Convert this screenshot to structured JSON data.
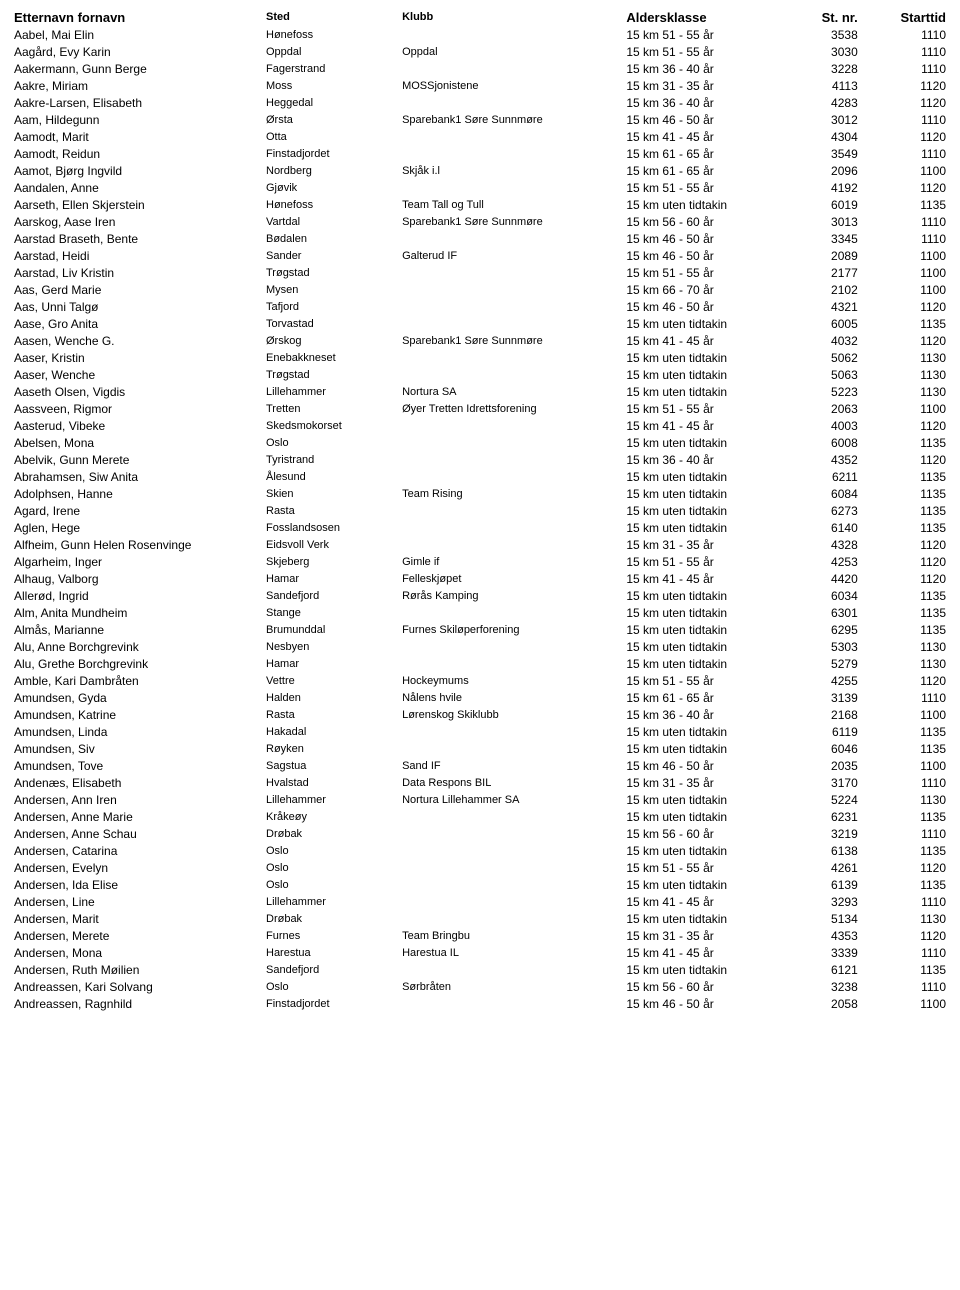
{
  "table": {
    "headers": {
      "name": "Etternavn fornavn",
      "sted": "Sted",
      "klubb": "Klubb",
      "alder": "Aldersklasse",
      "stnr": "St. nr.",
      "start": "Starttid"
    },
    "rows": [
      {
        "name": "Aabel, Mai Elin",
        "sted": "Hønefoss",
        "klubb": "",
        "alder": "15 km 51 - 55 år",
        "stnr": "3538",
        "start": "1110"
      },
      {
        "name": "Aagård, Evy Karin",
        "sted": "Oppdal",
        "klubb": "Oppdal",
        "alder": "15 km 51 - 55 år",
        "stnr": "3030",
        "start": "1110"
      },
      {
        "name": "Aakermann, Gunn Berge",
        "sted": "Fagerstrand",
        "klubb": "",
        "alder": "15 km 36 - 40 år",
        "stnr": "3228",
        "start": "1110"
      },
      {
        "name": "Aakre, Miriam",
        "sted": "Moss",
        "klubb": "MOSSjonistene",
        "alder": "15 km 31 - 35 år",
        "stnr": "4113",
        "start": "1120"
      },
      {
        "name": "Aakre-Larsen, Elisabeth",
        "sted": "Heggedal",
        "klubb": "",
        "alder": "15 km 36 - 40 år",
        "stnr": "4283",
        "start": "1120"
      },
      {
        "name": "Aam, Hildegunn",
        "sted": "Ørsta",
        "klubb": "Sparebank1 Søre Sunnmøre",
        "alder": "15 km 46 - 50 år",
        "stnr": "3012",
        "start": "1110"
      },
      {
        "name": "Aamodt, Marit",
        "sted": "Otta",
        "klubb": "",
        "alder": "15 km 41 - 45 år",
        "stnr": "4304",
        "start": "1120"
      },
      {
        "name": "Aamodt, Reidun",
        "sted": "Finstadjordet",
        "klubb": "",
        "alder": "15 km 61 - 65 år",
        "stnr": "3549",
        "start": "1110"
      },
      {
        "name": "Aamot, Bjørg Ingvild",
        "sted": "Nordberg",
        "klubb": "Skjåk i.l",
        "alder": "15 km 61 - 65 år",
        "stnr": "2096",
        "start": "1100"
      },
      {
        "name": "Aandalen, Anne",
        "sted": "Gjøvik",
        "klubb": "",
        "alder": "15 km 51 - 55 år",
        "stnr": "4192",
        "start": "1120"
      },
      {
        "name": "Aarseth, Ellen Skjerstein",
        "sted": "Hønefoss",
        "klubb": "Team Tall og Tull",
        "alder": "15 km uten tidtakin",
        "stnr": "6019",
        "start": "1135"
      },
      {
        "name": "Aarskog, Aase Iren",
        "sted": "Vartdal",
        "klubb": "Sparebank1 Søre Sunnmøre",
        "alder": "15 km 56 - 60 år",
        "stnr": "3013",
        "start": "1110"
      },
      {
        "name": "Aarstad Braseth, Bente",
        "sted": "Bødalen",
        "klubb": "",
        "alder": "15 km 46 - 50 år",
        "stnr": "3345",
        "start": "1110"
      },
      {
        "name": "Aarstad, Heidi",
        "sted": "Sander",
        "klubb": "Galterud IF",
        "alder": "15 km 46 - 50 år",
        "stnr": "2089",
        "start": "1100"
      },
      {
        "name": "Aarstad, Liv Kristin",
        "sted": "Trøgstad",
        "klubb": "",
        "alder": "15 km 51 - 55 år",
        "stnr": "2177",
        "start": "1100"
      },
      {
        "name": "Aas, Gerd Marie",
        "sted": "Mysen",
        "klubb": "",
        "alder": "15 km 66 - 70 år",
        "stnr": "2102",
        "start": "1100"
      },
      {
        "name": "Aas, Unni Talgø",
        "sted": "Tafjord",
        "klubb": "",
        "alder": "15 km 46 - 50 år",
        "stnr": "4321",
        "start": "1120"
      },
      {
        "name": "Aase, Gro Anita",
        "sted": "Torvastad",
        "klubb": "",
        "alder": "15 km uten tidtakin",
        "stnr": "6005",
        "start": "1135"
      },
      {
        "name": "Aasen, Wenche G.",
        "sted": "Ørskog",
        "klubb": "Sparebank1 Søre Sunnmøre",
        "alder": "15 km 41 - 45 år",
        "stnr": "4032",
        "start": "1120"
      },
      {
        "name": "Aaser, Kristin",
        "sted": "Enebakkneset",
        "klubb": "",
        "alder": "15 km uten tidtakin",
        "stnr": "5062",
        "start": "1130"
      },
      {
        "name": "Aaser, Wenche",
        "sted": "Trøgstad",
        "klubb": "",
        "alder": "15 km uten tidtakin",
        "stnr": "5063",
        "start": "1130"
      },
      {
        "name": "Aaseth Olsen, Vigdis",
        "sted": "Lillehammer",
        "klubb": "Nortura SA",
        "alder": "15 km uten tidtakin",
        "stnr": "5223",
        "start": "1130"
      },
      {
        "name": "Aassveen, Rigmor",
        "sted": "Tretten",
        "klubb": "Øyer Tretten Idrettsforening",
        "alder": "15 km 51 - 55 år",
        "stnr": "2063",
        "start": "1100"
      },
      {
        "name": "Aasterud, Vibeke",
        "sted": "Skedsmokorset",
        "klubb": "",
        "alder": "15 km 41 - 45 år",
        "stnr": "4003",
        "start": "1120"
      },
      {
        "name": "Abelsen, Mona",
        "sted": "Oslo",
        "klubb": "",
        "alder": "15 km uten tidtakin",
        "stnr": "6008",
        "start": "1135"
      },
      {
        "name": "Abelvik, Gunn Merete",
        "sted": "Tyristrand",
        "klubb": "",
        "alder": "15 km 36 - 40 år",
        "stnr": "4352",
        "start": "1120"
      },
      {
        "name": "Abrahamsen, Siw Anita",
        "sted": "Ålesund",
        "klubb": "",
        "alder": "15 km uten tidtakin",
        "stnr": "6211",
        "start": "1135"
      },
      {
        "name": "Adolphsen, Hanne",
        "sted": "Skien",
        "klubb": "Team Rising",
        "alder": "15 km uten tidtakin",
        "stnr": "6084",
        "start": "1135"
      },
      {
        "name": "Agard, Irene",
        "sted": "Rasta",
        "klubb": "",
        "alder": "15 km uten tidtakin",
        "stnr": "6273",
        "start": "1135"
      },
      {
        "name": "Aglen, Hege",
        "sted": "Fosslandsosen",
        "klubb": "",
        "alder": "15 km uten tidtakin",
        "stnr": "6140",
        "start": "1135"
      },
      {
        "name": "Alfheim, Gunn Helen Rosenvinge",
        "sted": "Eidsvoll Verk",
        "klubb": "",
        "alder": "15 km 31 - 35 år",
        "stnr": "4328",
        "start": "1120"
      },
      {
        "name": "Algarheim, Inger",
        "sted": "Skjeberg",
        "klubb": "Gimle if",
        "alder": "15 km 51 - 55 år",
        "stnr": "4253",
        "start": "1120"
      },
      {
        "name": "Alhaug, Valborg",
        "sted": "Hamar",
        "klubb": "Felleskjøpet",
        "alder": "15 km 41 - 45 år",
        "stnr": "4420",
        "start": "1120"
      },
      {
        "name": "Allerød, Ingrid",
        "sted": "Sandefjord",
        "klubb": "Rørås Kamping",
        "alder": "15 km uten tidtakin",
        "stnr": "6034",
        "start": "1135"
      },
      {
        "name": "Alm, Anita Mundheim",
        "sted": "Stange",
        "klubb": "",
        "alder": "15 km uten tidtakin",
        "stnr": "6301",
        "start": "1135"
      },
      {
        "name": "Almås, Marianne",
        "sted": "Brumunddal",
        "klubb": "Furnes Skiløperforening",
        "alder": "15 km uten tidtakin",
        "stnr": "6295",
        "start": "1135"
      },
      {
        "name": "Alu, Anne Borchgrevink",
        "sted": "Nesbyen",
        "klubb": "",
        "alder": "15 km uten tidtakin",
        "stnr": "5303",
        "start": "1130"
      },
      {
        "name": "Alu, Grethe Borchgrevink",
        "sted": "Hamar",
        "klubb": "",
        "alder": "15 km uten tidtakin",
        "stnr": "5279",
        "start": "1130"
      },
      {
        "name": "Amble, Kari Dambråten",
        "sted": "Vettre",
        "klubb": "Hockeymums",
        "alder": "15 km 51 - 55 år",
        "stnr": "4255",
        "start": "1120"
      },
      {
        "name": "Amundsen, Gyda",
        "sted": "Halden",
        "klubb": "Nålens hvile",
        "alder": "15 km 61 - 65 år",
        "stnr": "3139",
        "start": "1110"
      },
      {
        "name": "Amundsen, Katrine",
        "sted": "Rasta",
        "klubb": "Lørenskog Skiklubb",
        "alder": "15 km 36 - 40 år",
        "stnr": "2168",
        "start": "1100"
      },
      {
        "name": "Amundsen, Linda",
        "sted": "Hakadal",
        "klubb": "",
        "alder": "15 km uten tidtakin",
        "stnr": "6119",
        "start": "1135"
      },
      {
        "name": "Amundsen, Siv",
        "sted": "Røyken",
        "klubb": "",
        "alder": "15 km uten tidtakin",
        "stnr": "6046",
        "start": "1135"
      },
      {
        "name": "Amundsen, Tove",
        "sted": "Sagstua",
        "klubb": "Sand IF",
        "alder": "15 km 46 - 50 år",
        "stnr": "2035",
        "start": "1100"
      },
      {
        "name": "Andenæs, Elisabeth",
        "sted": "Hvalstad",
        "klubb": "Data Respons BIL",
        "alder": "15 km 31 - 35 år",
        "stnr": "3170",
        "start": "1110"
      },
      {
        "name": "Andersen, Ann Iren",
        "sted": "Lillehammer",
        "klubb": "Nortura Lillehammer SA",
        "alder": "15 km uten tidtakin",
        "stnr": "5224",
        "start": "1130"
      },
      {
        "name": "Andersen, Anne Marie",
        "sted": "Kråkeøy",
        "klubb": "",
        "alder": "15 km uten tidtakin",
        "stnr": "6231",
        "start": "1135"
      },
      {
        "name": "Andersen, Anne Schau",
        "sted": "Drøbak",
        "klubb": "",
        "alder": "15 km 56 - 60 år",
        "stnr": "3219",
        "start": "1110"
      },
      {
        "name": "Andersen, Catarina",
        "sted": "Oslo",
        "klubb": "",
        "alder": "15 km uten tidtakin",
        "stnr": "6138",
        "start": "1135"
      },
      {
        "name": "Andersen, Evelyn",
        "sted": "Oslo",
        "klubb": "",
        "alder": "15 km 51 - 55 år",
        "stnr": "4261",
        "start": "1120"
      },
      {
        "name": "Andersen, Ida Elise",
        "sted": "Oslo",
        "klubb": "",
        "alder": "15 km uten tidtakin",
        "stnr": "6139",
        "start": "1135"
      },
      {
        "name": "Andersen, Line",
        "sted": "Lillehammer",
        "klubb": "",
        "alder": "15 km 41 - 45 år",
        "stnr": "3293",
        "start": "1110"
      },
      {
        "name": "Andersen, Marit",
        "sted": "Drøbak",
        "klubb": "",
        "alder": "15 km uten tidtakin",
        "stnr": "5134",
        "start": "1130"
      },
      {
        "name": "Andersen, Merete",
        "sted": "Furnes",
        "klubb": "Team Bringbu",
        "alder": "15 km 31 - 35 år",
        "stnr": "4353",
        "start": "1120"
      },
      {
        "name": "Andersen, Mona",
        "sted": "Harestua",
        "klubb": "Harestua IL",
        "alder": "15 km 41 - 45 år",
        "stnr": "3339",
        "start": "1110"
      },
      {
        "name": "Andersen, Ruth Møilien",
        "sted": "Sandefjord",
        "klubb": "",
        "alder": "15 km uten tidtakin",
        "stnr": "6121",
        "start": "1135"
      },
      {
        "name": "Andreassen, Kari Solvang",
        "sted": "Oslo",
        "klubb": "Sørbråten",
        "alder": "15 km 56 - 60 år",
        "stnr": "3238",
        "start": "1110"
      },
      {
        "name": "Andreassen, Ragnhild",
        "sted": "Finstadjordet",
        "klubb": "",
        "alder": "15 km 46 - 50 år",
        "stnr": "2058",
        "start": "1100"
      }
    ]
  }
}
